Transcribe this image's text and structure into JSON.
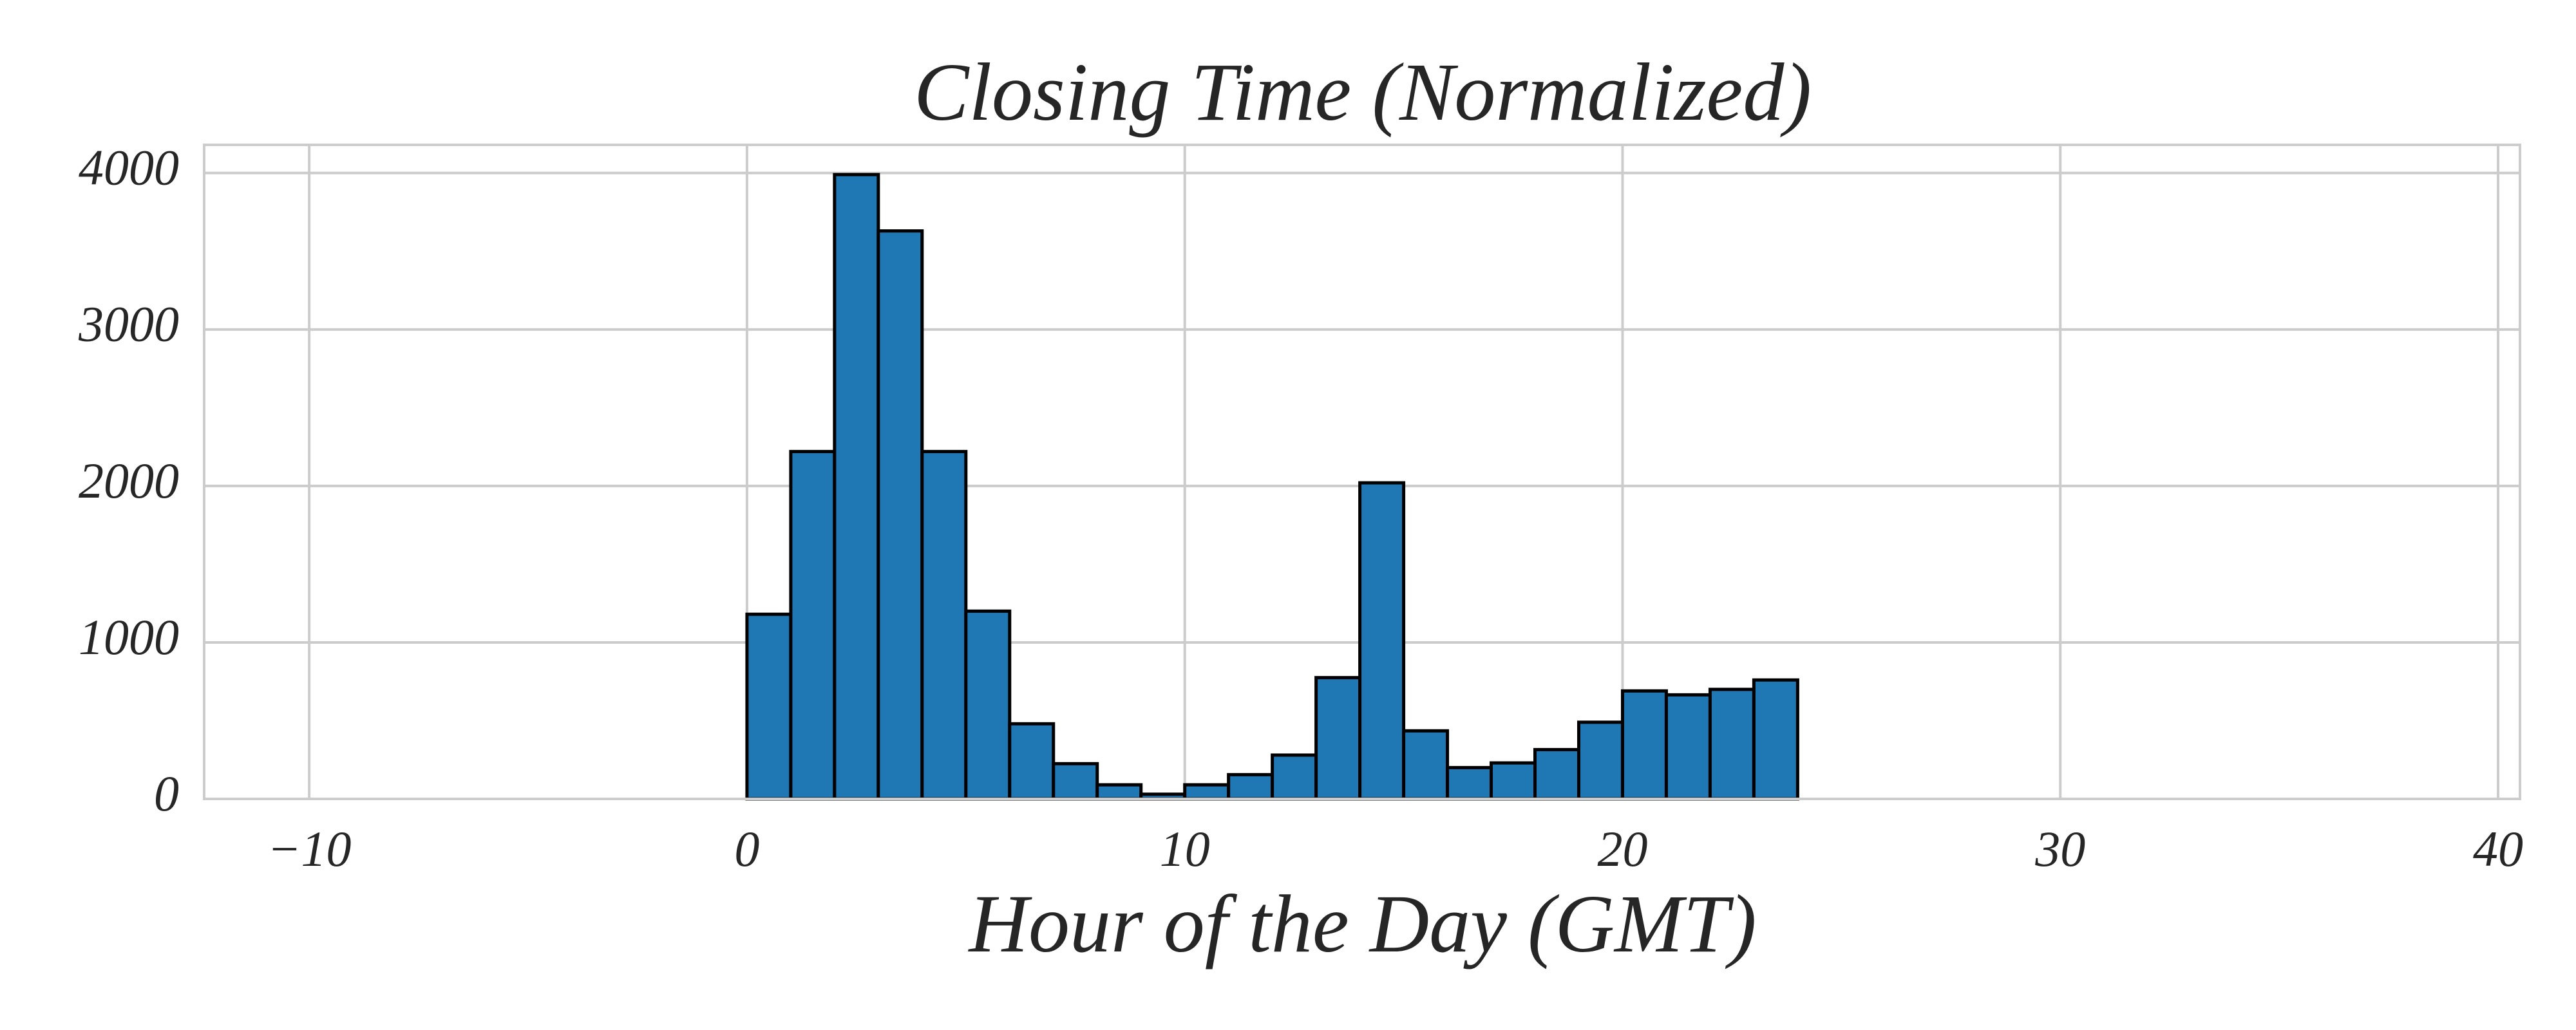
{
  "chart_data": {
    "type": "bar",
    "title": "Closing Time (Normalized)",
    "xlabel": "Hour of the Day (GMT)",
    "ylabel": "",
    "xlim": [
      -12.4,
      40.5
    ],
    "ylim": [
      0,
      4180
    ],
    "x_ticks": [
      -10,
      0,
      10,
      20,
      30,
      40
    ],
    "x_tick_labels": [
      "−10",
      "0",
      "10",
      "20",
      "30",
      "40"
    ],
    "y_ticks": [
      0,
      1000,
      2000,
      3000,
      4000
    ],
    "y_tick_labels": [
      "0",
      "1000",
      "2000",
      "3000",
      "4000"
    ],
    "grid": true,
    "bar_color": "#1f77b4",
    "edge_color": "#000000",
    "bins": [
      {
        "start": -10,
        "end": -9,
        "count": 0
      },
      {
        "start": -9,
        "end": -8,
        "count": 0
      },
      {
        "start": -8,
        "end": -7,
        "count": 0
      },
      {
        "start": -7,
        "end": -6,
        "count": 0
      },
      {
        "start": -6,
        "end": -5,
        "count": 0
      },
      {
        "start": -5,
        "end": -4,
        "count": 0
      },
      {
        "start": -4,
        "end": -3,
        "count": 0
      },
      {
        "start": -3,
        "end": -2,
        "count": 0
      },
      {
        "start": -2,
        "end": -1,
        "count": 0
      },
      {
        "start": -1,
        "end": 0,
        "count": 0
      },
      {
        "start": 0,
        "end": 1,
        "count": 1180
      },
      {
        "start": 1,
        "end": 2,
        "count": 2220
      },
      {
        "start": 2,
        "end": 3,
        "count": 3990
      },
      {
        "start": 3,
        "end": 4,
        "count": 3630
      },
      {
        "start": 4,
        "end": 5,
        "count": 2220
      },
      {
        "start": 5,
        "end": 6,
        "count": 1200
      },
      {
        "start": 6,
        "end": 7,
        "count": 480
      },
      {
        "start": 7,
        "end": 8,
        "count": 225
      },
      {
        "start": 8,
        "end": 9,
        "count": 90
      },
      {
        "start": 9,
        "end": 10,
        "count": 30
      },
      {
        "start": 10,
        "end": 11,
        "count": 90
      },
      {
        "start": 11,
        "end": 12,
        "count": 155
      },
      {
        "start": 12,
        "end": 13,
        "count": 280
      },
      {
        "start": 13,
        "end": 14,
        "count": 775
      },
      {
        "start": 14,
        "end": 15,
        "count": 2020
      },
      {
        "start": 15,
        "end": 16,
        "count": 435
      },
      {
        "start": 16,
        "end": 17,
        "count": 200
      },
      {
        "start": 17,
        "end": 18,
        "count": 230
      },
      {
        "start": 18,
        "end": 19,
        "count": 315
      },
      {
        "start": 19,
        "end": 20,
        "count": 490
      },
      {
        "start": 20,
        "end": 21,
        "count": 690
      },
      {
        "start": 21,
        "end": 22,
        "count": 665
      },
      {
        "start": 22,
        "end": 23,
        "count": 700
      },
      {
        "start": 23,
        "end": 24,
        "count": 760
      },
      {
        "start": 24,
        "end": 25,
        "count": 0
      },
      {
        "start": 25,
        "end": 26,
        "count": 0
      },
      {
        "start": 26,
        "end": 27,
        "count": 0
      },
      {
        "start": 27,
        "end": 28,
        "count": 0
      },
      {
        "start": 28,
        "end": 29,
        "count": 0
      },
      {
        "start": 29,
        "end": 30,
        "count": 0
      },
      {
        "start": 30,
        "end": 31,
        "count": 0
      },
      {
        "start": 31,
        "end": 32,
        "count": 0
      },
      {
        "start": 32,
        "end": 33,
        "count": 0
      },
      {
        "start": 33,
        "end": 34,
        "count": 0
      },
      {
        "start": 34,
        "end": 35,
        "count": 0
      },
      {
        "start": 35,
        "end": 36,
        "count": 0
      },
      {
        "start": 36,
        "end": 37,
        "count": 0
      },
      {
        "start": 37,
        "end": 38,
        "count": 0
      },
      {
        "start": 38,
        "end": 39,
        "count": 0
      }
    ]
  }
}
